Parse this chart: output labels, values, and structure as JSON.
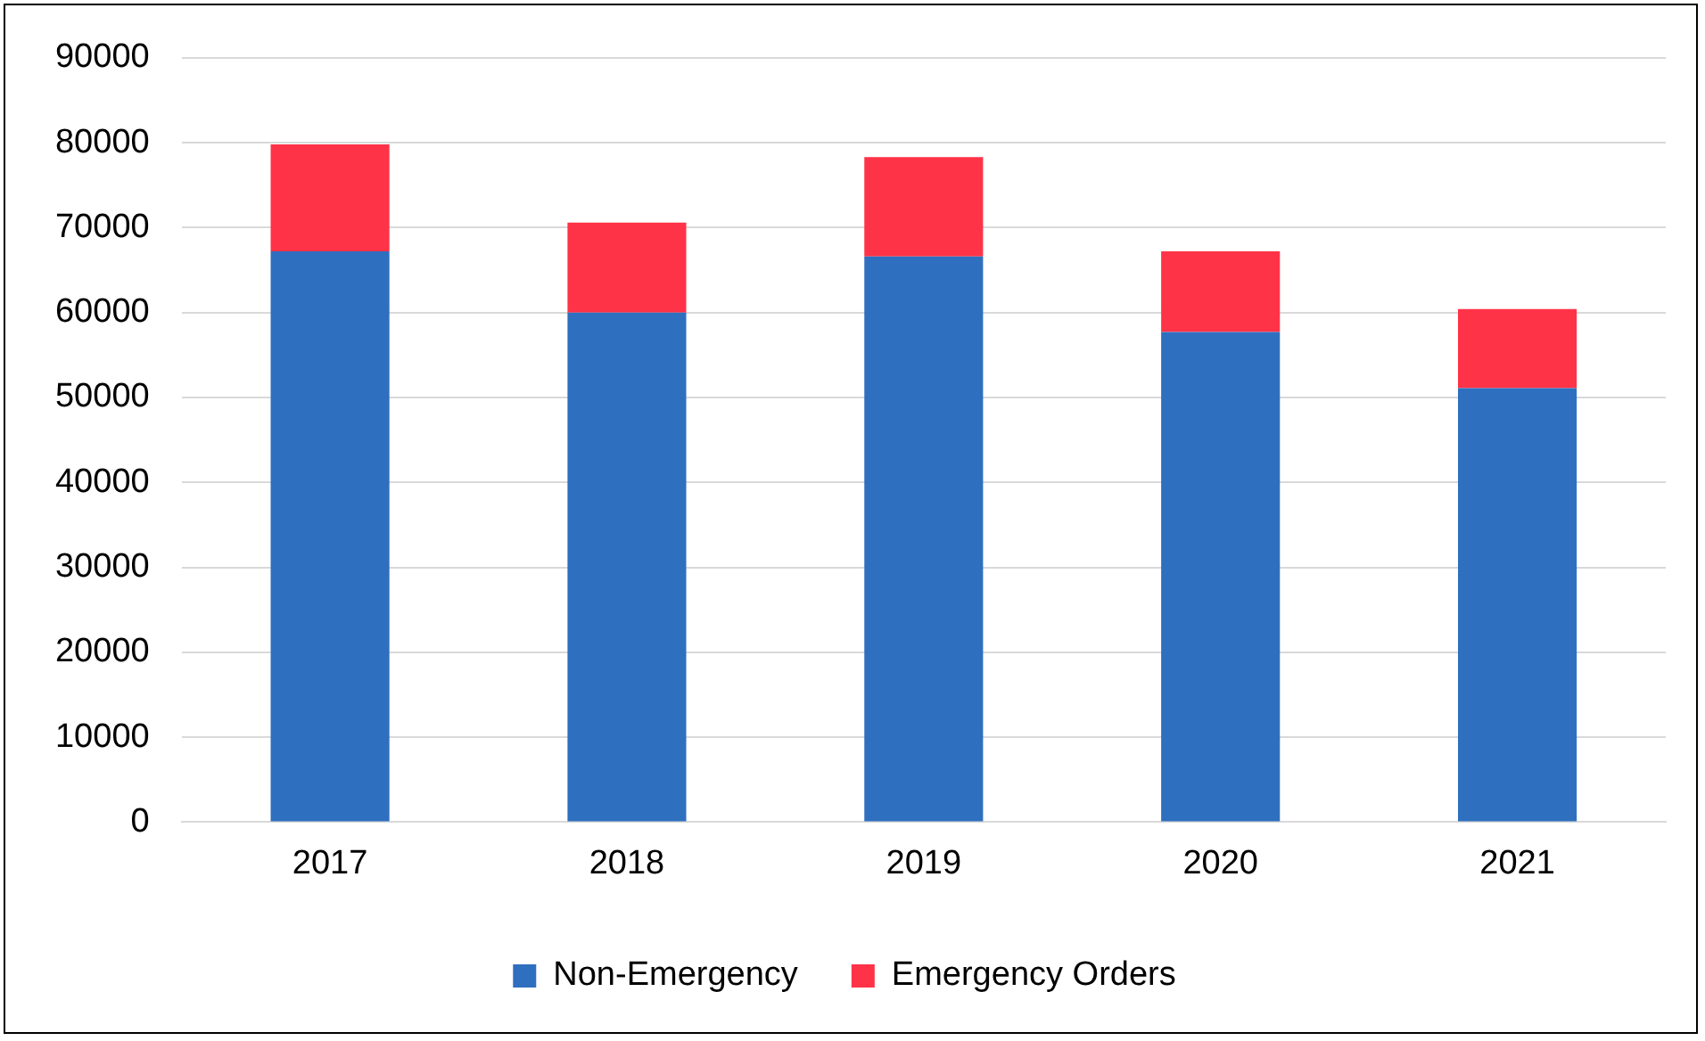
{
  "chart_data": {
    "type": "bar",
    "stacked": true,
    "categories": [
      "2017",
      "2018",
      "2019",
      "2020",
      "2021"
    ],
    "series": [
      {
        "name": "Non-Emergency",
        "color": "#2f6fbf",
        "values": [
          67200,
          60000,
          66600,
          57700,
          51100
        ]
      },
      {
        "name": "Emergency Orders",
        "color": "#ff3347",
        "values": [
          12600,
          10600,
          11700,
          9500,
          9300
        ]
      }
    ],
    "ylim": [
      0,
      90000
    ],
    "yticks": [
      0,
      10000,
      20000,
      30000,
      40000,
      50000,
      60000,
      70000,
      80000,
      90000
    ],
    "grid": "y",
    "legend": "bottom"
  }
}
